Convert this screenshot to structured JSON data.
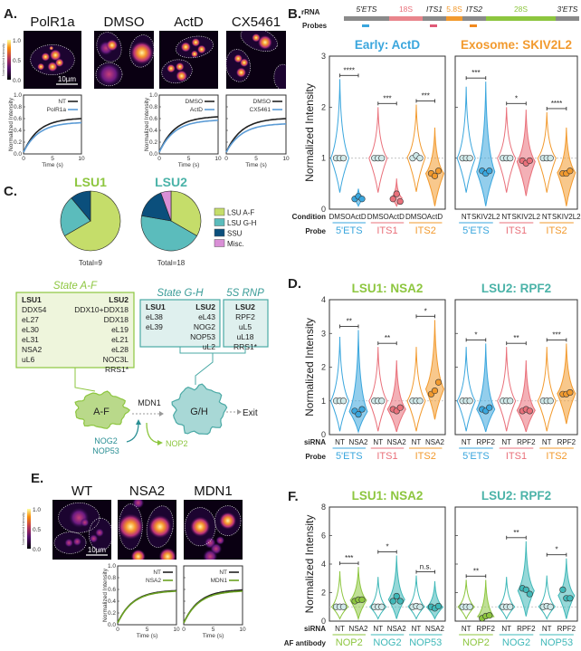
{
  "panel_labels": {
    "a": "A.",
    "b": "B.",
    "c": "C.",
    "d": "D.",
    "e": "E.",
    "f": "F."
  },
  "panel_a": {
    "conditions": [
      "PolR1a",
      "DMSO",
      "ActD",
      "CX5461"
    ],
    "scale_bar": "10µm",
    "colorbar": {
      "label": "Normalized Intensity",
      "ticks": [
        "1.0",
        "0.5",
        "0.0"
      ]
    },
    "frap_axis": {
      "ylabel": "Normalized Intensity",
      "xlabel": "Time (s)",
      "yticks": [
        "0.0",
        "0.2",
        "0.4",
        "0.6",
        "0.8",
        "1.0"
      ],
      "xticks": [
        "0",
        "5",
        "10"
      ]
    },
    "frap": [
      {
        "legend": [
          "NT",
          "PolR1a"
        ],
        "plateaus": [
          0.6,
          0.53
        ],
        "colors": [
          "#222222",
          "#5b9bd5"
        ]
      },
      {
        "legend": [
          "DMSO",
          "ActD"
        ],
        "plateaus": [
          0.63,
          0.57
        ],
        "colors": [
          "#222222",
          "#5b9bd5"
        ]
      },
      {
        "legend": [
          "DMSO",
          "CX5461"
        ],
        "plateaus": [
          0.6,
          0.51
        ],
        "colors": [
          "#222222",
          "#5b9bd5"
        ]
      }
    ]
  },
  "panel_b": {
    "rrna_label": "rRNA",
    "probes_label": "Probes",
    "segments": [
      {
        "name": "5'ETS",
        "color": "#8a8a8a",
        "text_color": "#222222",
        "span": 50
      },
      {
        "name": "18S",
        "color": "#e9858c",
        "text_color": "#e9707a",
        "span": 37
      },
      {
        "name": "ITS1",
        "color": "#8a8a8a",
        "text_color": "#222222",
        "span": 26
      },
      {
        "name": "5.8S",
        "color": "#f29a2e",
        "text_color": "#f29a2e",
        "span": 18
      },
      {
        "name": "ITS2",
        "color": "#8a8a8a",
        "text_color": "#222222",
        "span": 26
      },
      {
        "name": "28S",
        "color": "#8dc63f",
        "text_color": "#8dc63f",
        "span": 77
      },
      {
        "name": "3'ETS",
        "color": "#8a8a8a",
        "text_color": "#222222",
        "span": 26
      }
    ],
    "probes": [
      {
        "segment": 0,
        "color": "#3aa6dd"
      },
      {
        "segment": 2,
        "color": "#e05a78"
      },
      {
        "segment": 4,
        "color": "#f28a1e"
      }
    ]
  },
  "panel_c": {
    "pies": [
      {
        "title": "LSU1",
        "title_color": "#8dc63f",
        "total_label": "Total=9",
        "counts": [
          6,
          2,
          1,
          0
        ]
      },
      {
        "title": "LSU2",
        "title_color": "#4bb3a8",
        "total_label": "Total=18",
        "counts": [
          6,
          8,
          3,
          1
        ]
      }
    ],
    "legend": [
      {
        "label": "LSU A-F",
        "color": "#c5dd6a"
      },
      {
        "label": "LSU G-H",
        "color": "#5bbcbc"
      },
      {
        "label": "SSU",
        "color": "#0b4f7c"
      },
      {
        "label": "Misc.",
        "color": "#d98fd6"
      }
    ],
    "state_af": {
      "title": "State A-F",
      "col1_header": "LSU1",
      "col2_header": "LSU2",
      "col1": [
        "DDX54",
        "eL27",
        "eL30",
        "eL31",
        "NSA2",
        "uL6"
      ],
      "col2": [
        "DDX10+DDX18",
        "DDX18",
        "eL19",
        "eL21",
        "eL28",
        "NOC3L",
        "RRS1*"
      ]
    },
    "state_gh": {
      "title": "State G-H",
      "col1_header": "LSU1",
      "col2_header": "LSU2",
      "col1": [
        "eL38",
        "eL39"
      ],
      "col2": [
        "eL43",
        "NOG2",
        "NOP53",
        "uL2"
      ]
    },
    "rnp5s": {
      "title": "5S RNP",
      "col_header": "LSU2",
      "col": [
        "RPF2",
        "uL5",
        "uL18",
        "RRS1*"
      ]
    },
    "diagram": {
      "af_label": "A-F",
      "gh_label": "G/H",
      "mdn1": "MDN1",
      "exit": "Exit",
      "nog2": "NOG2",
      "nop53": "NOP53",
      "nop2": "NOP2"
    }
  },
  "panel_e": {
    "conditions": [
      "WT",
      "NSA2",
      "MDN1"
    ],
    "scale_bar": "10µm",
    "colorbar": {
      "label": "Normalized Intensity",
      "ticks": [
        "1.0",
        "0.5",
        "0.0"
      ]
    },
    "frap": [
      {
        "legend": [
          "NT",
          "NSA2"
        ],
        "plateaus": [
          0.58,
          0.57
        ],
        "colors": [
          "#222222",
          "#6aa121"
        ]
      },
      {
        "legend": [
          "NT",
          "MDN1"
        ],
        "plateaus": [
          0.59,
          0.57
        ],
        "colors": [
          "#222222",
          "#6aa121"
        ]
      }
    ]
  },
  "chart_data": [
    {
      "panel": "B",
      "type": "violin",
      "ylabel": "Normalized Intensity",
      "row_labels": [
        "Condition",
        "Probe"
      ],
      "ylim": [
        0,
        3
      ],
      "yticks": [
        "0",
        "1",
        "2",
        "3"
      ],
      "plots": [
        {
          "title": "Early: ActD",
          "title_color": "#3aa6dd",
          "groups": [
            {
              "probe": "5'ETS",
              "color": "#3aa6dd",
              "sig": "****",
              "violins": [
                {
                  "label": "DMSO",
                  "max": 2.55,
                  "points": [
                    1,
                    1,
                    1
                  ],
                  "filled": false
                },
                {
                  "label": "ActD",
                  "max": 0.4,
                  "points": [
                    0.2,
                    0.25,
                    0.2
                  ],
                  "filled": true
                }
              ]
            },
            {
              "probe": "ITS1",
              "color": "#e9707a",
              "sig": "***",
              "violins": [
                {
                  "label": "DMSO",
                  "max": 2.0,
                  "points": [
                    1,
                    1,
                    1
                  ],
                  "filled": false
                },
                {
                  "label": "ActD",
                  "max": 0.6,
                  "points": [
                    0.2,
                    0.3,
                    0.15
                  ],
                  "filled": true
                }
              ]
            },
            {
              "probe": "ITS2",
              "color": "#f29a2e",
              "sig": "***",
              "violins": [
                {
                  "label": "DMSO",
                  "max": 2.05,
                  "points": [
                    1,
                    1.05,
                    1
                  ],
                  "filled": false
                },
                {
                  "label": "ActD",
                  "max": 1.6,
                  "points": [
                    0.7,
                    0.65,
                    0.75
                  ],
                  "filled": true
                }
              ]
            }
          ]
        },
        {
          "title": "Exosome: SKIV2L2",
          "title_color": "#f29a2e",
          "groups": [
            {
              "probe": "5'ETS",
              "color": "#3aa6dd",
              "sig": "***",
              "violins": [
                {
                  "label": "NT",
                  "max": 2.4,
                  "points": [
                    1,
                    1,
                    1
                  ],
                  "filled": false
                },
                {
                  "label": "SKIV2L2",
                  "max": 2.5,
                  "points": [
                    0.75,
                    0.7,
                    0.75
                  ],
                  "filled": true
                }
              ]
            },
            {
              "probe": "ITS1",
              "color": "#e9707a",
              "sig": "*",
              "violins": [
                {
                  "label": "NT",
                  "max": 2.0,
                  "points": [
                    1,
                    1,
                    1
                  ],
                  "filled": false
                },
                {
                  "label": "SKIV2L2",
                  "max": 1.95,
                  "points": [
                    0.95,
                    0.9,
                    0.95
                  ],
                  "filled": true
                }
              ]
            },
            {
              "probe": "ITS2",
              "color": "#f29a2e",
              "sig": "****",
              "violins": [
                {
                  "label": "NT",
                  "max": 1.9,
                  "points": [
                    1,
                    1,
                    1
                  ],
                  "filled": false
                },
                {
                  "label": "SKIV2L2",
                  "max": 1.6,
                  "points": [
                    0.7,
                    0.7,
                    0.75
                  ],
                  "filled": true
                }
              ]
            }
          ]
        }
      ]
    },
    {
      "panel": "D",
      "type": "violin",
      "ylabel": "Normalized Intensity",
      "row_labels": [
        "siRNA",
        "Probe"
      ],
      "ylim": [
        0,
        4
      ],
      "yticks": [
        "0",
        "1",
        "2",
        "3",
        "4"
      ],
      "plots": [
        {
          "title": "LSU1: NSA2",
          "title_color": "#8dc63f",
          "groups": [
            {
              "probe": "5'ETS",
              "color": "#3aa6dd",
              "sig": "**",
              "violins": [
                {
                  "label": "NT",
                  "max": 2.9,
                  "points": [
                    1,
                    1,
                    1
                  ],
                  "filled": false
                },
                {
                  "label": "NSA2",
                  "max": 3.1,
                  "points": [
                    0.7,
                    0.6,
                    0.75
                  ],
                  "filled": true
                }
              ]
            },
            {
              "probe": "ITS1",
              "color": "#e9707a",
              "sig": "**",
              "violins": [
                {
                  "label": "NT",
                  "max": 2.6,
                  "points": [
                    1,
                    1,
                    1
                  ],
                  "filled": false
                },
                {
                  "label": "NSA2",
                  "max": 2.2,
                  "points": [
                    0.75,
                    0.7,
                    0.8
                  ],
                  "filled": true
                }
              ]
            },
            {
              "probe": "ITS2",
              "color": "#f29a2e",
              "sig": "*",
              "violins": [
                {
                  "label": "NT",
                  "max": 2.6,
                  "points": [
                    1,
                    1,
                    1
                  ],
                  "filled": false
                },
                {
                  "label": "NSA2",
                  "max": 3.4,
                  "points": [
                    1.2,
                    1.3,
                    1.55
                  ],
                  "filled": true
                }
              ]
            }
          ]
        },
        {
          "title": "LSU2: RPF2",
          "title_color": "#4bb3a8",
          "groups": [
            {
              "probe": "5'ETS",
              "color": "#3aa6dd",
              "sig": "*",
              "violins": [
                {
                  "label": "NT",
                  "max": 2.6,
                  "points": [
                    1,
                    1,
                    1
                  ],
                  "filled": false
                },
                {
                  "label": "RPF2",
                  "max": 2.7,
                  "points": [
                    0.75,
                    0.7,
                    0.8
                  ],
                  "filled": true
                }
              ]
            },
            {
              "probe": "ITS1",
              "color": "#e9707a",
              "sig": "**",
              "violins": [
                {
                  "label": "NT",
                  "max": 2.6,
                  "points": [
                    1,
                    1,
                    1
                  ],
                  "filled": false
                },
                {
                  "label": "RPF2",
                  "max": 2.2,
                  "points": [
                    0.7,
                    0.75,
                    0.7
                  ],
                  "filled": true
                }
              ]
            },
            {
              "probe": "ITS2",
              "color": "#f29a2e",
              "sig": "***",
              "violins": [
                {
                  "label": "NT",
                  "max": 2.6,
                  "points": [
                    1,
                    1,
                    1
                  ],
                  "filled": false
                },
                {
                  "label": "RPF2",
                  "max": 2.7,
                  "points": [
                    1.2,
                    1.2,
                    1.25
                  ],
                  "filled": true
                }
              ]
            }
          ]
        }
      ]
    },
    {
      "panel": "F",
      "type": "violin",
      "ylabel": "Normalized Intensity",
      "row_labels": [
        "siRNA",
        "AF antibody"
      ],
      "ylim": [
        0,
        8
      ],
      "yticks": [
        "0",
        "2",
        "4",
        "6",
        "8"
      ],
      "plots": [
        {
          "title": "LSU1: NSA2",
          "title_color": "#8dc63f",
          "groups": [
            {
              "probe": "NOP2",
              "color": "#8dc63f",
              "sig": "***",
              "violins": [
                {
                  "label": "NT",
                  "max": 3.5,
                  "points": [
                    1,
                    1,
                    1
                  ],
                  "filled": false
                },
                {
                  "label": "NSA2",
                  "max": 3.8,
                  "points": [
                    1.4,
                    1.5,
                    1.5
                  ],
                  "filled": true
                }
              ]
            },
            {
              "probe": "NOG2",
              "color": "#3fb8b8",
              "sig": "*",
              "violins": [
                {
                  "label": "NT",
                  "max": 3.1,
                  "points": [
                    1,
                    1,
                    1
                  ],
                  "filled": false
                },
                {
                  "label": "NSA2",
                  "max": 4.6,
                  "points": [
                    1.4,
                    1.75,
                    1.4
                  ],
                  "filled": true
                }
              ]
            },
            {
              "probe": "NOP53",
              "color": "#3fb8b8",
              "sig": "n.s.",
              "violins": [
                {
                  "label": "NT",
                  "max": 3.2,
                  "points": [
                    1,
                    1.05,
                    1
                  ],
                  "filled": false
                },
                {
                  "label": "NSA2",
                  "max": 2.8,
                  "points": [
                    1.0,
                    0.9,
                    1.05
                  ],
                  "filled": true
                }
              ]
            }
          ]
        },
        {
          "title": "LSU2: RPF2",
          "title_color": "#4bb3a8",
          "groups": [
            {
              "probe": "NOP2",
              "color": "#8dc63f",
              "sig": "**",
              "violins": [
                {
                  "label": "NT",
                  "max": 2.9,
                  "points": [
                    1,
                    1,
                    1
                  ],
                  "filled": false
                },
                {
                  "label": "RPF2",
                  "max": 2.9,
                  "points": [
                    0.2,
                    0.35,
                    0.4
                  ],
                  "filled": true
                }
              ]
            },
            {
              "probe": "NOG2",
              "color": "#3fb8b8",
              "sig": "**",
              "violins": [
                {
                  "label": "NT",
                  "max": 3.1,
                  "points": [
                    1,
                    1,
                    1
                  ],
                  "filled": false
                },
                {
                  "label": "RPF2",
                  "max": 5.6,
                  "points": [
                    2.3,
                    2.2,
                    1.9
                  ],
                  "filled": true
                }
              ]
            },
            {
              "probe": "NOP53",
              "color": "#3fb8b8",
              "sig": "*",
              "violins": [
                {
                  "label": "NT",
                  "max": 3.2,
                  "points": [
                    1,
                    1.05,
                    1
                  ],
                  "filled": false
                },
                {
                  "label": "RPF2",
                  "max": 4.4,
                  "points": [
                    2.2,
                    1.6,
                    1.6
                  ],
                  "filled": true
                }
              ]
            }
          ]
        }
      ]
    }
  ]
}
